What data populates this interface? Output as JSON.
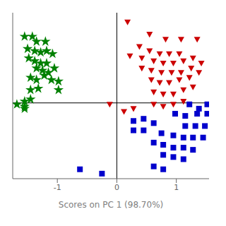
{
  "chart_data": {
    "type": "scatter",
    "xlabel": "Scores on PC 1 (98.70%)",
    "xlim": [
      -1.75,
      1.55
    ],
    "ylim": [
      -1.05,
      1.25
    ],
    "xticks": [
      -1,
      0,
      1
    ],
    "tick_labels": "x",
    "series": [
      {
        "color": "#008000",
        "marker": "star",
        "values": [
          [
            -1.55,
            0.92
          ],
          [
            -1.42,
            0.92
          ],
          [
            -1.35,
            0.85
          ],
          [
            -1.2,
            0.85
          ],
          [
            -1.5,
            0.75
          ],
          [
            -1.38,
            0.72
          ],
          [
            -1.28,
            0.7
          ],
          [
            -1.18,
            0.72
          ],
          [
            -1.08,
            0.68
          ],
          [
            -1.48,
            0.62
          ],
          [
            -1.38,
            0.58
          ],
          [
            -1.28,
            0.55
          ],
          [
            -1.18,
            0.55
          ],
          [
            -1.35,
            0.48
          ],
          [
            -1.25,
            0.45
          ],
          [
            -1.15,
            0.42
          ],
          [
            -1.05,
            0.48
          ],
          [
            -1.45,
            0.35
          ],
          [
            -1.35,
            0.32
          ],
          [
            -1.22,
            0.38
          ],
          [
            -1.1,
            0.32
          ],
          [
            -0.98,
            0.3
          ],
          [
            -1.45,
            0.18
          ],
          [
            -1.32,
            0.2
          ],
          [
            -0.98,
            0.18
          ],
          [
            -1.55,
            0.02
          ],
          [
            -1.45,
            0.05
          ],
          [
            -1.55,
            -0.05
          ],
          [
            -1.68,
            -0.02
          ],
          [
            -1.55,
            -0.08
          ]
        ]
      },
      {
        "color": "#cc0000",
        "marker": "triangle_down",
        "values": [
          [
            0.18,
            1.12
          ],
          [
            0.55,
            0.95
          ],
          [
            0.82,
            0.88
          ],
          [
            1.08,
            0.88
          ],
          [
            1.35,
            0.88
          ],
          [
            0.38,
            0.78
          ],
          [
            0.55,
            0.72
          ],
          [
            0.72,
            0.68
          ],
          [
            0.88,
            0.68
          ],
          [
            1.05,
            0.68
          ],
          [
            0.22,
            0.65
          ],
          [
            0.42,
            0.62
          ],
          [
            0.62,
            0.58
          ],
          [
            0.78,
            0.55
          ],
          [
            0.95,
            0.55
          ],
          [
            1.12,
            0.58
          ],
          [
            1.28,
            0.62
          ],
          [
            0.42,
            0.48
          ],
          [
            0.58,
            0.45
          ],
          [
            0.75,
            0.42
          ],
          [
            0.92,
            0.42
          ],
          [
            1.08,
            0.42
          ],
          [
            1.25,
            0.48
          ],
          [
            1.42,
            0.55
          ],
          [
            0.58,
            0.32
          ],
          [
            0.72,
            0.28
          ],
          [
            0.88,
            0.28
          ],
          [
            1.05,
            0.32
          ],
          [
            1.22,
            0.35
          ],
          [
            1.38,
            0.42
          ],
          [
            0.62,
            0.15
          ],
          [
            0.78,
            0.12
          ],
          [
            0.95,
            0.12
          ],
          [
            1.12,
            0.18
          ],
          [
            1.28,
            0.22
          ],
          [
            0.62,
            -0.02
          ],
          [
            0.78,
            -0.05
          ],
          [
            0.95,
            -0.02
          ],
          [
            1.12,
            0.02
          ],
          [
            -0.12,
            -0.02
          ],
          [
            0.12,
            -0.12
          ],
          [
            0.28,
            -0.08
          ]
        ]
      },
      {
        "color": "#0000cc",
        "marker": "square",
        "values": [
          [
            1.22,
            -0.02
          ],
          [
            1.38,
            -0.08
          ],
          [
            1.52,
            -0.02
          ],
          [
            0.98,
            -0.15
          ],
          [
            1.15,
            -0.18
          ],
          [
            1.35,
            -0.15
          ],
          [
            1.52,
            -0.15
          ],
          [
            0.28,
            -0.25
          ],
          [
            0.45,
            -0.22
          ],
          [
            0.62,
            -0.28
          ],
          [
            1.15,
            -0.32
          ],
          [
            1.32,
            -0.32
          ],
          [
            1.48,
            -0.32
          ],
          [
            0.28,
            -0.38
          ],
          [
            0.45,
            -0.38
          ],
          [
            0.75,
            -0.42
          ],
          [
            0.95,
            -0.45
          ],
          [
            1.12,
            -0.48
          ],
          [
            1.28,
            -0.48
          ],
          [
            1.45,
            -0.48
          ],
          [
            0.62,
            -0.55
          ],
          [
            0.78,
            -0.58
          ],
          [
            0.95,
            -0.62
          ],
          [
            1.12,
            -0.62
          ],
          [
            1.28,
            -0.65
          ],
          [
            0.78,
            -0.72
          ],
          [
            0.95,
            -0.75
          ],
          [
            1.12,
            -0.78
          ],
          [
            0.62,
            -0.88
          ],
          [
            0.78,
            -0.92
          ],
          [
            -0.62,
            -0.92
          ],
          [
            -0.25,
            -0.98
          ]
        ]
      }
    ]
  }
}
